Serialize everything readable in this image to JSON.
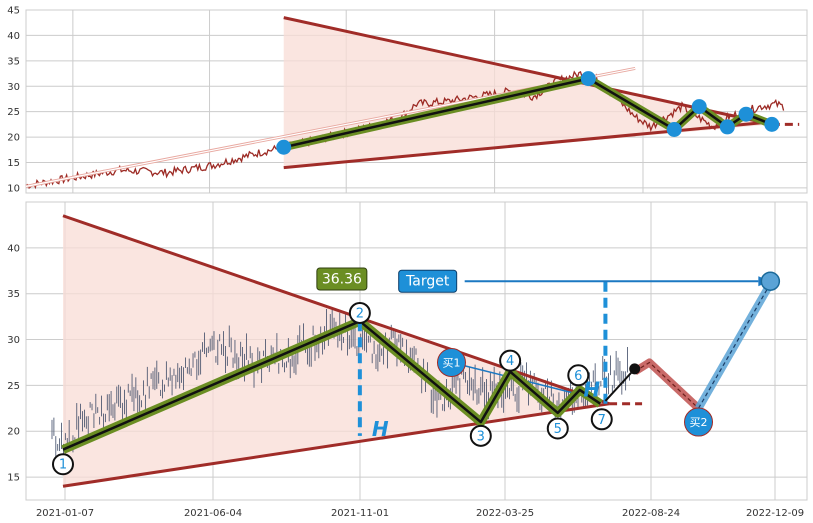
{
  "colors": {
    "price": "#9c2a24",
    "ohlc": "#3d4a66",
    "triangle_line": "#a02c28",
    "triangle_fill": "#f8dcd6",
    "wave_outer": "#6b8e23",
    "wave_inner": "#111111",
    "marker_blue": "#1e90d8",
    "target_line": "#1b78c2",
    "grid": "#cccccc",
    "projection_up": "#5aa3d6",
    "projection_down": "#c0504d"
  },
  "chart_data": [
    {
      "type": "line",
      "name": "overview",
      "xlim": [
        0,
        1000
      ],
      "ylim": [
        9,
        45
      ],
      "yticks": [
        10,
        15,
        20,
        25,
        30,
        35,
        40,
        45
      ],
      "grid": true,
      "price_keypoints": [
        [
          0,
          10.5
        ],
        [
          60,
          12
        ],
        [
          120,
          13.5
        ],
        [
          180,
          13
        ],
        [
          240,
          14.5
        ],
        [
          300,
          17
        ],
        [
          360,
          19
        ],
        [
          400,
          20.5
        ],
        [
          440,
          22
        ],
        [
          480,
          24
        ],
        [
          500,
          26.5
        ],
        [
          540,
          27
        ],
        [
          580,
          28
        ],
        [
          620,
          29
        ],
        [
          650,
          28
        ],
        [
          680,
          31
        ],
        [
          700,
          32
        ],
        [
          720,
          33
        ],
        [
          740,
          30
        ],
        [
          760,
          27
        ],
        [
          780,
          24
        ],
        [
          800,
          22
        ],
        [
          820,
          24
        ],
        [
          840,
          26
        ],
        [
          860,
          24
        ],
        [
          880,
          22
        ],
        [
          900,
          24
        ],
        [
          920,
          25
        ],
        [
          940,
          26
        ],
        [
          960,
          26.5
        ],
        [
          970,
          26
        ]
      ],
      "triangle": {
        "upper": [
          [
            330,
            43.5
          ],
          [
            955,
            22.5
          ]
        ],
        "lower": [
          [
            330,
            14
          ],
          [
            955,
            23
          ]
        ],
        "extension_to": 990
      },
      "wave_path": [
        [
          330,
          18
        ],
        [
          720,
          31.5
        ],
        [
          830,
          21.5
        ],
        [
          862,
          26
        ],
        [
          898,
          22
        ],
        [
          922,
          24.5
        ],
        [
          955,
          22.5
        ]
      ],
      "markers": [
        [
          330,
          18
        ],
        [
          720,
          31.5
        ],
        [
          830,
          21.5
        ],
        [
          862,
          26
        ],
        [
          898,
          22
        ],
        [
          922,
          24.5
        ],
        [
          955,
          22.5
        ]
      ],
      "trend_arrow": [
        [
          0,
          10.3
        ],
        [
          780,
          33.5
        ]
      ]
    },
    {
      "type": "line",
      "name": "detail",
      "x_ticks": [
        "2021-01-07",
        "2021-06-04",
        "2021-11-01",
        "2022-03-25",
        "2022-08-24",
        "2022-12-09"
      ],
      "xlim": [
        0,
        1000
      ],
      "ylim": [
        12.5,
        45
      ],
      "yticks": [
        15,
        20,
        25,
        30,
        35,
        40
      ],
      "grid": true,
      "ohlc_keypoints": [
        [
          0,
          19.5
        ],
        [
          15,
          18.5
        ],
        [
          40,
          21
        ],
        [
          80,
          22.5
        ],
        [
          120,
          24
        ],
        [
          160,
          26
        ],
        [
          200,
          28
        ],
        [
          240,
          29
        ],
        [
          280,
          27
        ],
        [
          320,
          28
        ],
        [
          360,
          30
        ],
        [
          380,
          31.5
        ],
        [
          410,
          30
        ],
        [
          440,
          29
        ],
        [
          470,
          30
        ],
        [
          500,
          27
        ],
        [
          530,
          23
        ],
        [
          560,
          25.5
        ],
        [
          600,
          24
        ],
        [
          640,
          25
        ],
        [
          670,
          24
        ],
        [
          700,
          23
        ],
        [
          730,
          24.5
        ],
        [
          760,
          26
        ],
        [
          790,
          27
        ]
      ],
      "triangle": {
        "upper": [
          [
            15,
            43.5
          ],
          [
            760,
            23
          ]
        ],
        "lower": [
          [
            15,
            14
          ],
          [
            760,
            23
          ]
        ],
        "extension_to": 805
      },
      "wave_path": [
        [
          15,
          18
        ],
        [
          420,
          32
        ],
        [
          585,
          21
        ],
        [
          625,
          26.5
        ],
        [
          690,
          22
        ],
        [
          720,
          24.5
        ],
        [
          748,
          23
        ]
      ],
      "wave_points": [
        {
          "label": "1",
          "x": 15,
          "y": 16.4
        },
        {
          "label": "2",
          "x": 420,
          "y": 32.9
        },
        {
          "label": "3",
          "x": 585,
          "y": 19.5
        },
        {
          "label": "4",
          "x": 625,
          "y": 27.7
        },
        {
          "label": "5",
          "x": 690,
          "y": 20.3
        },
        {
          "label": "6",
          "x": 718,
          "y": 26.1
        },
        {
          "label": "7",
          "x": 750,
          "y": 21.3
        }
      ],
      "h_label": "H",
      "h_line_left": {
        "x": 420,
        "y_top": 32,
        "y_bottom": 19.5
      },
      "h_line_right": {
        "x": 755,
        "y_top": 36.3,
        "y_bottom": 22.5
      },
      "peak_value_label": "36.36",
      "target_label": "Target",
      "target_y": 36.36,
      "target_arrow_x": [
        563,
        980
      ],
      "buy1": {
        "label": "买1",
        "x": 545,
        "y": 27.5,
        "arrow_to": [
          710,
          24.2
        ]
      },
      "buy2": {
        "label": "买2",
        "x": 882,
        "y": 21
      },
      "black_dot": {
        "x": 795,
        "y": 26.8
      },
      "arrow_to_dot_from": [
        755,
        23.3
      ],
      "projection_down": [
        [
          795,
          26.5
        ],
        [
          815,
          27.5
        ],
        [
          882,
          22.5
        ]
      ],
      "projection_up": [
        [
          882,
          22.5
        ],
        [
          982,
          36.36
        ]
      ]
    }
  ]
}
